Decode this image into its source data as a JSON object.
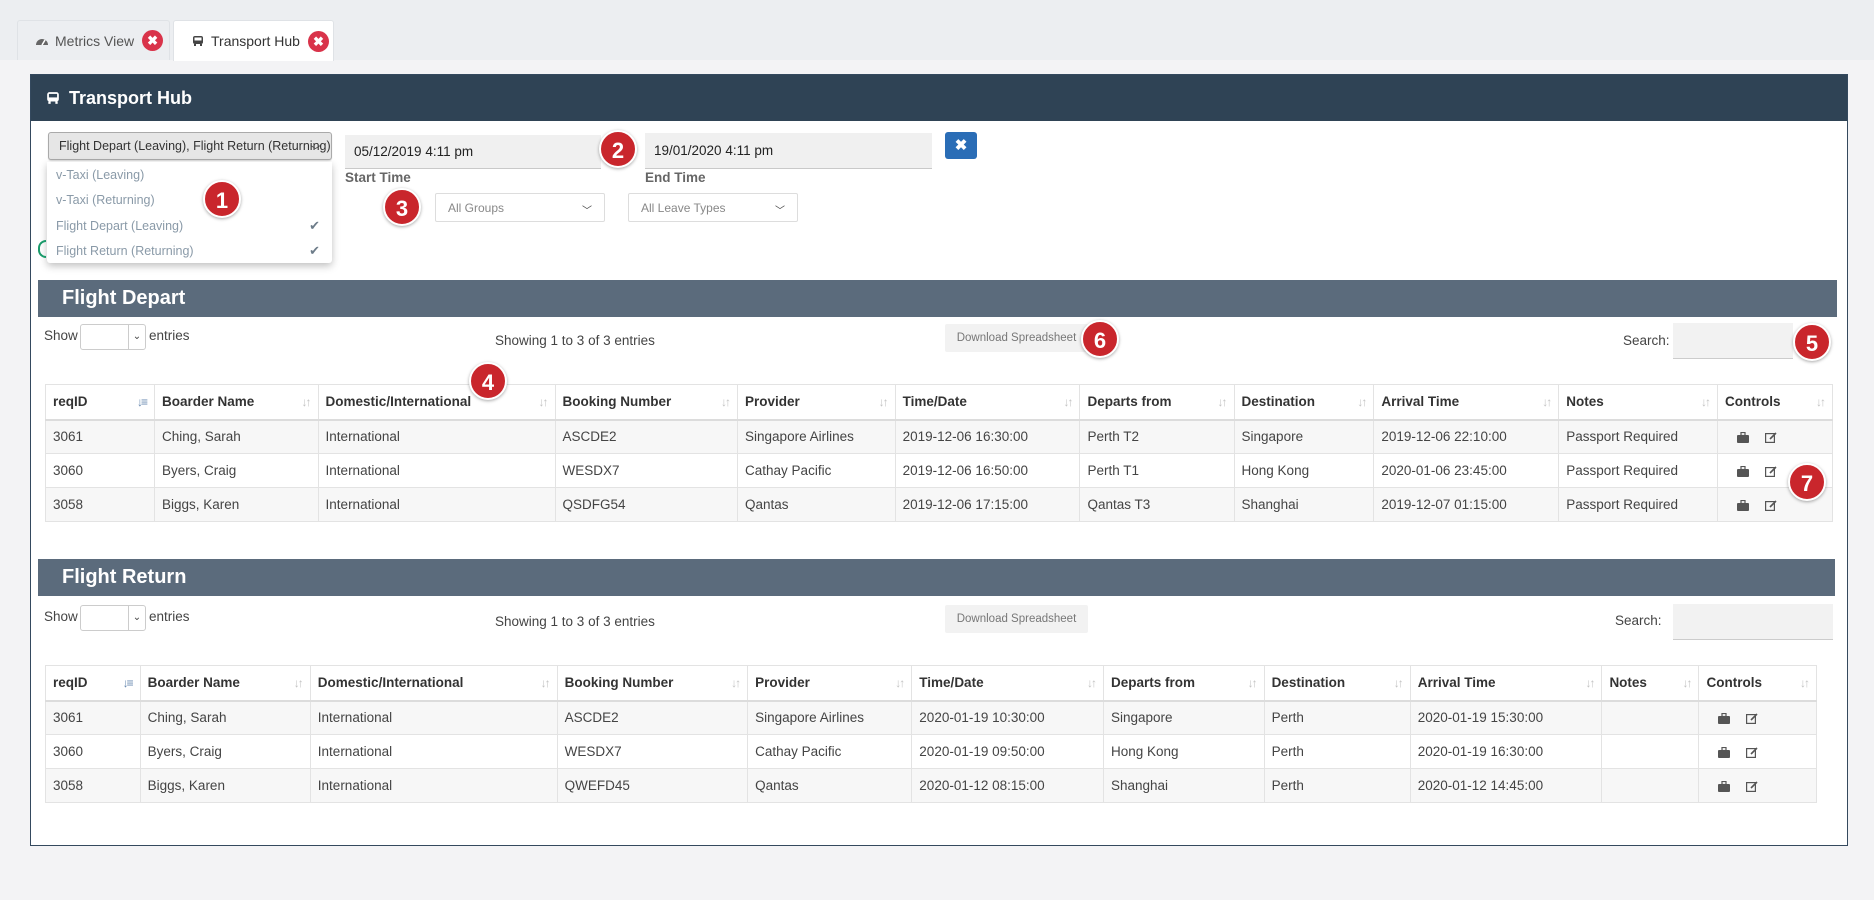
{
  "tabs": [
    {
      "label": "Metrics View",
      "icon": "dashboard-icon"
    },
    {
      "label": "Transport Hub",
      "icon": "bus-icon"
    }
  ],
  "panel": {
    "title": "Transport Hub"
  },
  "filters": {
    "transport_type": {
      "selected": "Flight Depart (Leaving), Flight Return (Returning)",
      "options": [
        {
          "label": "v-Taxi (Leaving)",
          "checked": false
        },
        {
          "label": "v-Taxi (Returning)",
          "checked": false
        },
        {
          "label": "Flight Depart (Leaving)",
          "checked": true
        },
        {
          "label": "Flight Return (Returning)",
          "checked": true
        }
      ]
    },
    "start_time": {
      "value": "05/12/2019 4:11 pm",
      "label": "Start Time"
    },
    "end_time": {
      "value": "19/01/2020 4:11 pm",
      "label": "End Time"
    },
    "clear_icon": "✖",
    "groups": {
      "selected": "All Groups"
    },
    "leave_types": {
      "selected": "All Leave Types"
    }
  },
  "callouts": [
    "1",
    "2",
    "3",
    "4",
    "5",
    "6",
    "7"
  ],
  "depart": {
    "title": "Flight Depart",
    "show_label": "Show",
    "entries_label": "entries",
    "info": "Showing 1 to 3 of 3 entries",
    "download_label": "Download Spreadsheet",
    "search_label": "Search:",
    "columns": [
      "reqID",
      "Boarder Name",
      "Domestic/International",
      "Booking Number",
      "Provider",
      "Time/Date",
      "Departs from",
      "Destination",
      "Arrival Time",
      "Notes",
      "Controls"
    ],
    "rows": [
      [
        "3061",
        "Ching, Sarah",
        "International",
        "ASCDE2",
        "Singapore Airlines",
        "2019-12-06 16:30:00",
        "Perth T2",
        "Singapore",
        "2019-12-06 22:10:00",
        "Passport Required"
      ],
      [
        "3060",
        "Byers, Craig",
        "International",
        "WESDX7",
        "Cathay Pacific",
        "2019-12-06 16:50:00",
        "Perth T1",
        "Hong Kong",
        "2020-01-06 23:45:00",
        "Passport Required"
      ],
      [
        "3058",
        "Biggs, Karen",
        "International",
        "QSDFG54",
        "Qantas",
        "2019-12-06 17:15:00",
        "Qantas T3",
        "Shanghai",
        "2019-12-07 01:15:00",
        "Passport Required"
      ]
    ]
  },
  "ret": {
    "title": "Flight Return",
    "show_label": "Show",
    "entries_label": "entries",
    "info": "Showing 1 to 3 of 3 entries",
    "download_label": "Download Spreadsheet",
    "search_label": "Search:",
    "columns": [
      "reqID",
      "Boarder Name",
      "Domestic/International",
      "Booking Number",
      "Provider",
      "Time/Date",
      "Departs from",
      "Destination",
      "Arrival Time",
      "Notes",
      "Controls"
    ],
    "rows": [
      [
        "3061",
        "Ching, Sarah",
        "International",
        "ASCDE2",
        "Singapore Airlines",
        "2020-01-19 10:30:00",
        "Singapore",
        "Perth",
        "2020-01-19 15:30:00",
        ""
      ],
      [
        "3060",
        "Byers, Craig",
        "International",
        "WESDX7",
        "Cathay Pacific",
        "2020-01-19 09:50:00",
        "Hong Kong",
        "Perth",
        "2020-01-19 16:30:00",
        ""
      ],
      [
        "3058",
        "Biggs, Karen",
        "International",
        "QWEFD45",
        "Qantas",
        "2020-01-12 08:15:00",
        "Shanghai",
        "Perth",
        "2020-01-12 14:45:00",
        ""
      ]
    ]
  },
  "colors": {
    "header": "#2f4355",
    "section": "#5b6b7c",
    "callout": "#c9262c",
    "accent": "#2a6db6"
  }
}
